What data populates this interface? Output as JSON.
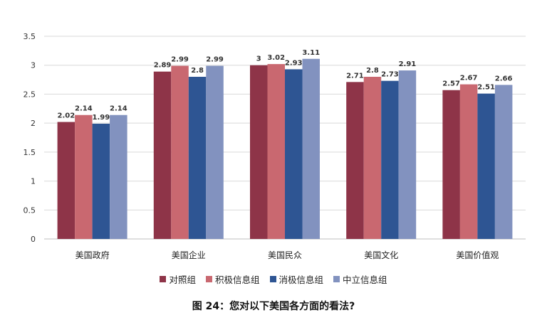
{
  "chart_data": {
    "type": "bar",
    "categories": [
      "美国政府",
      "美国企业",
      "美国民众",
      "美国文化",
      "美国价值观"
    ],
    "series": [
      {
        "name": "对照组",
        "color": "#8e3448",
        "values": [
          2.02,
          2.89,
          3,
          2.71,
          2.57
        ]
      },
      {
        "name": "积极信息组",
        "color": "#c96870",
        "values": [
          2.14,
          2.99,
          3.02,
          2.8,
          2.67
        ]
      },
      {
        "name": "消极信息组",
        "color": "#2e5593",
        "values": [
          1.99,
          2.8,
          2.93,
          2.73,
          2.51
        ]
      },
      {
        "name": "中立信息组",
        "color": "#8292bf",
        "values": [
          2.14,
          2.99,
          3.11,
          2.91,
          2.66
        ]
      }
    ],
    "yticks": [
      "0",
      "0.5",
      "1",
      "1.5",
      "2",
      "2.5",
      "3",
      "3.5"
    ],
    "ylim": [
      0,
      3.5
    ],
    "grid": true,
    "legend_position": "bottom",
    "title": "图 24：您对以下美国各方面的看法?"
  }
}
